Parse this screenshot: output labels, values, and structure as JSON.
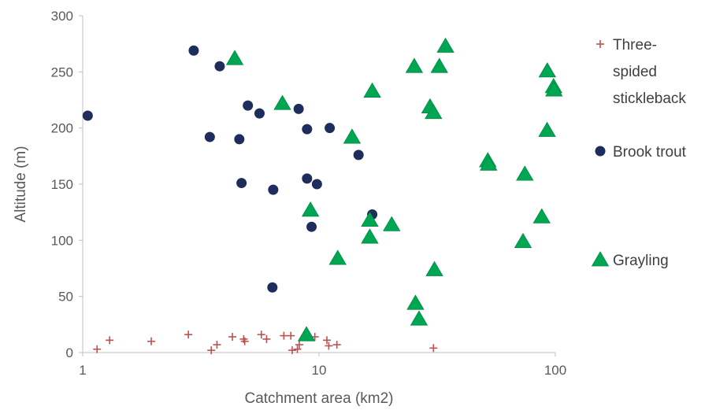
{
  "chart_data": {
    "type": "scatter",
    "xlabel": "Catchment area (km2)",
    "ylabel": "Altitude (m)",
    "x_scale": "log",
    "xlim": [
      1,
      100
    ],
    "ylim": [
      0,
      300
    ],
    "x_ticks": [
      "1",
      "10",
      "100"
    ],
    "y_ticks": [
      "0",
      "50",
      "100",
      "150",
      "200",
      "250",
      "300"
    ],
    "grid": false,
    "legend_position": "right",
    "series": [
      {
        "name": "Three-spided stickleback",
        "legend_lines": [
          "Three-",
          "spided",
          "stickleback"
        ],
        "marker": "plus",
        "color": "#c0504d",
        "points": [
          {
            "x": 1.15,
            "y": 3
          },
          {
            "x": 1.3,
            "y": 11
          },
          {
            "x": 1.95,
            "y": 10
          },
          {
            "x": 2.8,
            "y": 16
          },
          {
            "x": 3.5,
            "y": 2
          },
          {
            "x": 3.7,
            "y": 7
          },
          {
            "x": 4.3,
            "y": 14
          },
          {
            "x": 4.8,
            "y": 12
          },
          {
            "x": 4.85,
            "y": 10
          },
          {
            "x": 5.7,
            "y": 16
          },
          {
            "x": 6.0,
            "y": 12
          },
          {
            "x": 7.1,
            "y": 15
          },
          {
            "x": 7.6,
            "y": 15
          },
          {
            "x": 7.7,
            "y": 2
          },
          {
            "x": 8.1,
            "y": 3
          },
          {
            "x": 8.25,
            "y": 7
          },
          {
            "x": 9.6,
            "y": 14
          },
          {
            "x": 10.8,
            "y": 11
          },
          {
            "x": 11.0,
            "y": 6
          },
          {
            "x": 11.9,
            "y": 7
          },
          {
            "x": 30.5,
            "y": 4
          }
        ]
      },
      {
        "name": "Brook trout",
        "marker": "circle",
        "color": "#1f2d5c",
        "points": [
          {
            "x": 1.05,
            "y": 211
          },
          {
            "x": 2.95,
            "y": 269
          },
          {
            "x": 3.8,
            "y": 255
          },
          {
            "x": 3.45,
            "y": 192
          },
          {
            "x": 4.6,
            "y": 190
          },
          {
            "x": 5.0,
            "y": 220
          },
          {
            "x": 5.6,
            "y": 213
          },
          {
            "x": 4.7,
            "y": 151
          },
          {
            "x": 6.4,
            "y": 145
          },
          {
            "x": 6.35,
            "y": 58
          },
          {
            "x": 8.2,
            "y": 217
          },
          {
            "x": 8.9,
            "y": 199
          },
          {
            "x": 11.1,
            "y": 200
          },
          {
            "x": 8.9,
            "y": 155
          },
          {
            "x": 9.8,
            "y": 150
          },
          {
            "x": 9.3,
            "y": 112
          },
          {
            "x": 14.7,
            "y": 176
          },
          {
            "x": 16.8,
            "y": 123
          }
        ]
      },
      {
        "name": "Grayling",
        "marker": "triangle",
        "color": "#00a651",
        "points": [
          {
            "x": 4.4,
            "y": 262
          },
          {
            "x": 7.0,
            "y": 222
          },
          {
            "x": 9.2,
            "y": 127
          },
          {
            "x": 8.85,
            "y": 16
          },
          {
            "x": 12.0,
            "y": 84
          },
          {
            "x": 13.8,
            "y": 192
          },
          {
            "x": 16.8,
            "y": 233
          },
          {
            "x": 16.4,
            "y": 118
          },
          {
            "x": 16.4,
            "y": 103
          },
          {
            "x": 20.3,
            "y": 114
          },
          {
            "x": 25.3,
            "y": 255
          },
          {
            "x": 25.6,
            "y": 44
          },
          {
            "x": 26.5,
            "y": 30
          },
          {
            "x": 29.5,
            "y": 219
          },
          {
            "x": 30.5,
            "y": 214
          },
          {
            "x": 30.8,
            "y": 74
          },
          {
            "x": 32.3,
            "y": 255
          },
          {
            "x": 34.3,
            "y": 273
          },
          {
            "x": 51.8,
            "y": 171
          },
          {
            "x": 52.2,
            "y": 168
          },
          {
            "x": 74.3,
            "y": 159
          },
          {
            "x": 73.0,
            "y": 99
          },
          {
            "x": 87.6,
            "y": 121
          },
          {
            "x": 92.5,
            "y": 251
          },
          {
            "x": 92.3,
            "y": 198
          },
          {
            "x": 98.3,
            "y": 237
          },
          {
            "x": 98.7,
            "y": 234
          }
        ]
      }
    ]
  }
}
